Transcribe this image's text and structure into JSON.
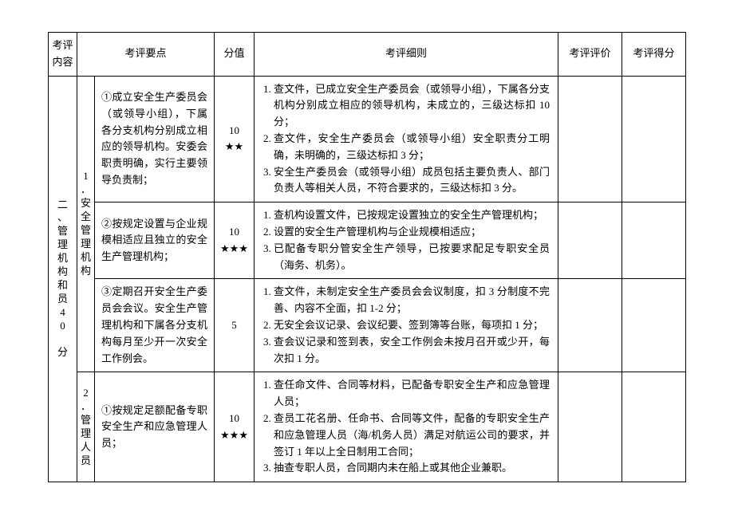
{
  "headers": {
    "content": "考评内容",
    "points": "考评要点",
    "score": "分值",
    "detail": "考评细则",
    "eval": "考评评价",
    "finalscore": "考评得分"
  },
  "section": {
    "main_line1": "二、管理机构和员",
    "main_line2": "40 分",
    "sub1_num": "1",
    "sub1_label": "安全管理机构",
    "sub2_num": "2",
    "sub2_label": "管理人员"
  },
  "rows": {
    "r1": {
      "point": "①成立安全生产委员会（或领导小组），下属各分支机构分别成立相应的领导机构。安委会职责明确，实行主要领导负责制；",
      "score_num": "10",
      "score_stars": "★★",
      "d1": "查文件，已成立安全生产委员会（或领导小组），下属各分支机构分别成立相应的领导机构，未成立的，三级达标扣 10 分；",
      "d2": "查文件，安全生产委员会（或领导小组）安全职责分工明确，未明确的，三级达标扣 3 分；",
      "d3": "安全生产委员会（或领导小组）成员包括主要负责人、部门负责人等相关人员，不符合要求的，三级达标扣 3 分。"
    },
    "r2": {
      "point": "②按规定设置与企业规模相适应且独立的安全生产管理机构；",
      "score_num": "10",
      "score_stars": "★★★",
      "d1": "查机构设置文件，已按规定设置独立的安全生产管理机构；",
      "d2": "设置的安全生产管理机构与企业规模相适应；",
      "d3": "已配备专职分管安全生产领导，已按要求配足专职安全员（海务、机务）。"
    },
    "r3": {
      "point": "③定期召开安全生产委员会会议。安全生产管理机构和下属各分支机构每月至少开一次安全工作例会。",
      "score_num": "5",
      "d1": "查文件，未制定安全生产委员会会议制度，扣 3 分制度不完善、内容不全面，扣 1-2 分；",
      "d2": "无安全会议记录、会议纪要、签到簿等台账，每项扣 1 分；",
      "d3": "查会议记录和签到表，安全工作例会未按月召开或少开，每次扣 1 分。"
    },
    "r4": {
      "point": "①按规定足额配备专职安全生产和应急管理人员；",
      "score_num": "10",
      "score_stars": "★★★",
      "d1": "查任命文件、合同等材料，已配备专职安全生产和应急管理人员；",
      "d2": "查员工花名册、任命书、合同等文件，配备的专职安全生产和应急管理人员（海/机务人员）满足对航运公司的要求，并签订 1 年以上全日制用工合同；",
      "d3": "抽查专职人员，合同期内未在船上或其他企业兼职。"
    }
  }
}
